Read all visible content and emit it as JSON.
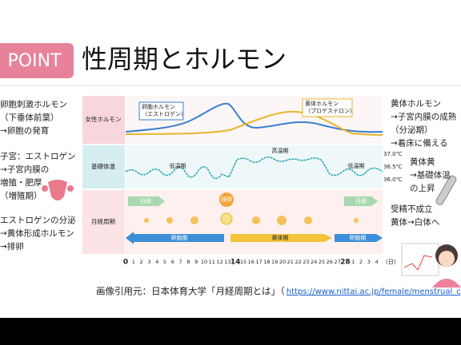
{
  "badge": "POINT",
  "title": "性周期とホルモン",
  "left_notes": [
    [
      "卵胞刺激ホルモン",
      "（下垂体前葉）",
      "→卵胞の発育"
    ],
    [
      "子宮：エストロゲン",
      "→子宮内膜の",
      "増殖・肥厚",
      "（増殖期）"
    ],
    [
      "エストロゲンの分泌",
      "→黄体形成ホルモン",
      "→排卵"
    ]
  ],
  "rows": [
    "女性ホルモン",
    "基礎体温",
    "月経周期"
  ],
  "hormones": {
    "estrogen": [
      "卵胞ホルモン",
      "（エストロゲン）"
    ],
    "progesterone": [
      "黄体ホルモン",
      "（プロゲステロン）"
    ]
  },
  "temperature": {
    "labels": [
      "37.0℃",
      "36.5℃",
      "36.0℃"
    ],
    "phases": [
      "低温期",
      "高温期",
      "低温期"
    ]
  },
  "cycle": {
    "events": [
      "月経",
      "排卵",
      "月経"
    ],
    "phases": [
      "卵胞期",
      "黄体期",
      "卵胞期"
    ]
  },
  "days": [
    "0",
    "1",
    "2",
    "3",
    "4",
    "5",
    "6",
    "7",
    "8",
    "9",
    "10",
    "11",
    "12",
    "13",
    "14",
    "15",
    "16",
    "17",
    "18",
    "19",
    "20",
    "21",
    "22",
    "23",
    "24",
    "25",
    "26",
    "27",
    "28",
    "1",
    "2",
    "3",
    "4"
  ],
  "day_unit": "(日)",
  "right_notes": [
    [
      "黄体ホルモン",
      "→子宮内膜の成熟",
      "（分泌期）",
      "→着床に備える"
    ],
    [
      "黄体黄",
      "→基礎体温",
      "の上昇"
    ],
    [
      "受精不成立",
      "黄体→白体へ"
    ]
  ],
  "footer": {
    "prefix": "画像引用元：日本体育大学「月経周期とは」（",
    "link": "https://www.nittai.ac.jp/female/menstrual_cycle/index.html",
    "suffix": "）"
  }
}
